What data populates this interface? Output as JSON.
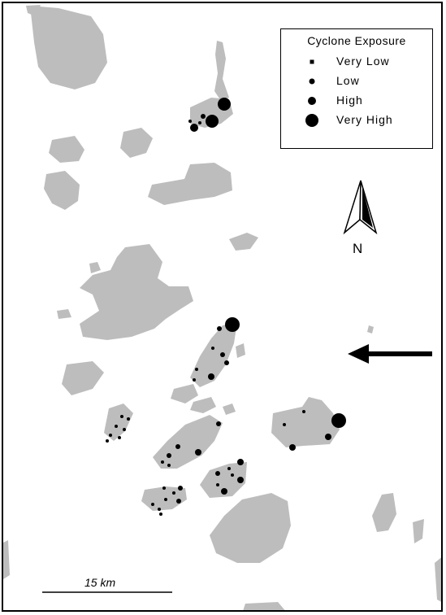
{
  "legend": {
    "title": "Cyclone Exposure",
    "items": [
      {
        "label": "Very Low",
        "class": "very-low"
      },
      {
        "label": "Low",
        "class": "low"
      },
      {
        "label": "High",
        "class": "high"
      },
      {
        "label": "Very High",
        "class": "very-high"
      }
    ]
  },
  "north_arrow": {
    "label": "N"
  },
  "scale_bar": {
    "label": "15 km"
  },
  "colors": {
    "land": "#bdbdbd",
    "symbols": "#000000",
    "background": "#ffffff"
  },
  "exposure_classes": [
    "very-low",
    "low",
    "high",
    "very-high"
  ]
}
